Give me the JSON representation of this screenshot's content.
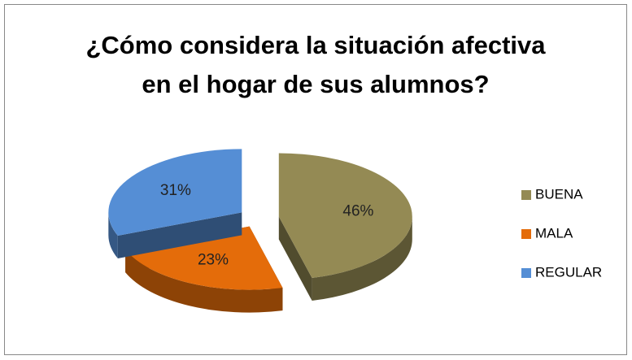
{
  "chart_data": {
    "type": "pie",
    "title": [
      "¿Cómo considera la situación afectiva",
      "en el hogar de sus alumnos?"
    ],
    "categories": [
      "BUENA",
      "MALA",
      "REGULAR"
    ],
    "values": [
      46,
      23,
      31
    ],
    "value_labels": [
      "46%",
      "23%",
      "31%"
    ],
    "colors": [
      "#948a54",
      "#e46c0a",
      "#558ed5"
    ],
    "legend": "right"
  }
}
